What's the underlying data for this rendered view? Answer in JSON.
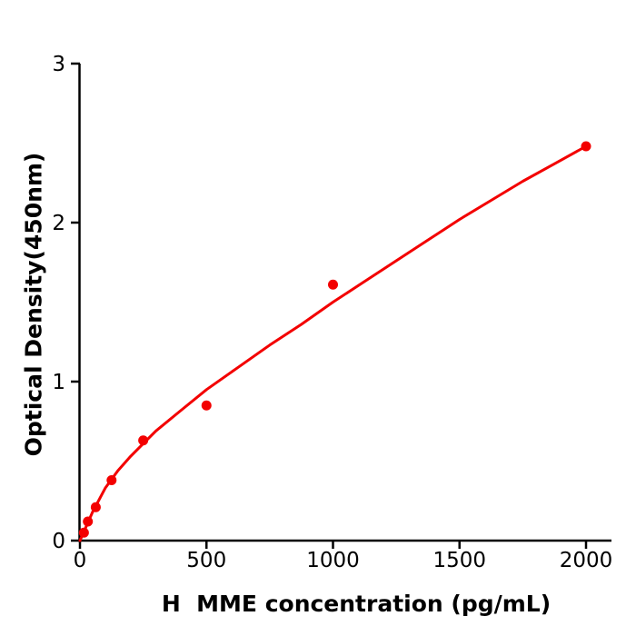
{
  "chart_data": {
    "type": "scatter",
    "title": "",
    "xlabel": "H  MME concentration (pg/mL)",
    "ylabel": "Optical Density(450nm)",
    "x_ticks": [
      0,
      500,
      1000,
      1500,
      2000
    ],
    "y_ticks": [
      0,
      1,
      2,
      3
    ],
    "xlim": [
      0,
      2100
    ],
    "ylim": [
      0,
      3
    ],
    "grid": false,
    "legend": null,
    "axis_color": "#000000",
    "accent_color": "#f30000",
    "series": [
      {
        "name": "standard-points",
        "kind": "scatter",
        "color": "#f30000",
        "points": [
          [
            15.625,
            0.05
          ],
          [
            31.25,
            0.12
          ],
          [
            62.5,
            0.21
          ],
          [
            125,
            0.38
          ],
          [
            250,
            0.63
          ],
          [
            500,
            0.85
          ],
          [
            1000,
            1.61
          ],
          [
            2000,
            2.48
          ]
        ]
      },
      {
        "name": "fit-curve",
        "kind": "line",
        "color": "#f30000",
        "points": [
          [
            0,
            0.0
          ],
          [
            50,
            0.18
          ],
          [
            100,
            0.33
          ],
          [
            150,
            0.44
          ],
          [
            200,
            0.53
          ],
          [
            250,
            0.61
          ],
          [
            300,
            0.69
          ],
          [
            400,
            0.82
          ],
          [
            500,
            0.95
          ],
          [
            625,
            1.09
          ],
          [
            750,
            1.23
          ],
          [
            875,
            1.36
          ],
          [
            1000,
            1.5
          ],
          [
            1125,
            1.63
          ],
          [
            1250,
            1.76
          ],
          [
            1375,
            1.89
          ],
          [
            1500,
            2.02
          ],
          [
            1625,
            2.14
          ],
          [
            1750,
            2.26
          ],
          [
            1875,
            2.37
          ],
          [
            2000,
            2.48
          ]
        ]
      }
    ]
  }
}
